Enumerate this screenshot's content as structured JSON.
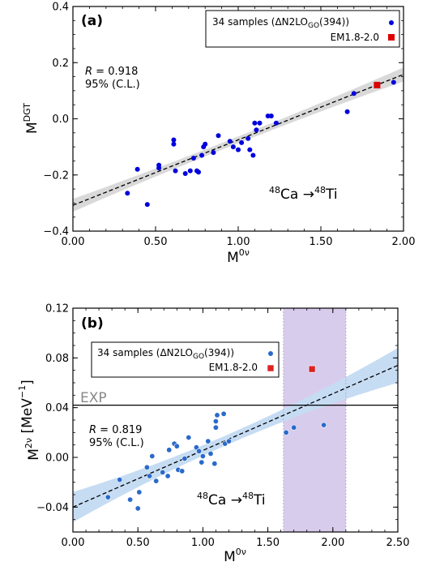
{
  "chart_data": [
    {
      "type": "scatter",
      "panel_label": "(a)",
      "xlabel": "M0ν",
      "ylabel": "MDGT",
      "xlim": [
        0.0,
        2.0
      ],
      "ylim": [
        -0.4,
        0.4
      ],
      "x_ticks": [
        "0.00",
        "0.50",
        "1.00",
        "1.50",
        "2.00"
      ],
      "y_ticks": [
        "0.4",
        "0.2",
        "0.0",
        "−0.2",
        "−0.4"
      ],
      "annotation": {
        "r_line": "R = 0.918",
        "cl_line": "95% (C.L.)"
      },
      "reaction": {
        "parent": "48Ca",
        "daughter": "48Ti"
      },
      "legend": {
        "position": "top-right",
        "samples_text": "34 samples (ΔN2LO",
        "samples_sub": "GO",
        "samples_tail": "(394))",
        "em_text": "EM1.8-2.0"
      },
      "fit": {
        "x0": 0.0,
        "y0": -0.308,
        "x1": 2.0,
        "y1": 0.158,
        "band_half_width_end": 0.025,
        "band_half_width_center": 0.012
      },
      "series": [
        {
          "name": "34 samples (ΔN2LOGO(394))",
          "color": "#0000dd",
          "points": [
            [
              0.33,
              -0.265
            ],
            [
              0.39,
              -0.18
            ],
            [
              0.45,
              -0.305
            ],
            [
              0.52,
              -0.165
            ],
            [
              0.52,
              -0.175
            ],
            [
              0.61,
              -0.075
            ],
            [
              0.61,
              -0.09
            ],
            [
              0.62,
              -0.185
            ],
            [
              0.68,
              -0.195
            ],
            [
              0.71,
              -0.185
            ],
            [
              0.73,
              -0.14
            ],
            [
              0.75,
              -0.185
            ],
            [
              0.76,
              -0.19
            ],
            [
              0.78,
              -0.13
            ],
            [
              0.79,
              -0.1
            ],
            [
              0.8,
              -0.09
            ],
            [
              0.85,
              -0.12
            ],
            [
              0.88,
              -0.06
            ],
            [
              0.95,
              -0.08
            ],
            [
              0.97,
              -0.1
            ],
            [
              1.0,
              -0.11
            ],
            [
              1.02,
              -0.085
            ],
            [
              1.06,
              -0.07
            ],
            [
              1.07,
              -0.11
            ],
            [
              1.09,
              -0.13
            ],
            [
              1.1,
              -0.015
            ],
            [
              1.11,
              -0.04
            ],
            [
              1.13,
              -0.015
            ],
            [
              1.18,
              0.01
            ],
            [
              1.2,
              0.01
            ],
            [
              1.23,
              -0.015
            ],
            [
              1.66,
              0.025
            ],
            [
              1.7,
              0.09
            ],
            [
              1.94,
              0.13
            ]
          ]
        },
        {
          "name": "EM1.8-2.0",
          "color": "#dd0000",
          "points": [
            [
              1.84,
              0.12
            ]
          ]
        }
      ]
    },
    {
      "type": "scatter",
      "panel_label": "(b)",
      "xlabel": "M0ν",
      "ylabel": "M2ν [MeV−1]",
      "xlim": [
        0.0,
        2.5
      ],
      "ylim": [
        -0.06,
        0.12
      ],
      "x_ticks": [
        "0.00",
        "0.50",
        "1.00",
        "1.50",
        "2.00",
        "2.50"
      ],
      "y_ticks": [
        "0.12",
        "0.08",
        "0.04",
        "0.00",
        "−0.04"
      ],
      "exp_value": 0.042,
      "exp_label": "EXP",
      "shaded_x_range": [
        1.62,
        2.1
      ],
      "annotation": {
        "r_line": "R = 0.819",
        "cl_line": "95% (C.L.)"
      },
      "reaction": {
        "parent": "48Ca",
        "daughter": "48Ti"
      },
      "legend": {
        "position": "upper-left",
        "samples_text": "34 samples (ΔN2LO",
        "samples_sub": "GO",
        "samples_tail": "(394))",
        "em_text": "EM1.8-2.0"
      },
      "fit": {
        "x0": 0.0,
        "y0": -0.04,
        "x1": 2.5,
        "y1": 0.074,
        "band_half_width_end": 0.014,
        "band_half_width_center": 0.004
      },
      "series": [
        {
          "name": "34 samples (ΔN2LOGO(394))",
          "color": "#2a6acb",
          "points": [
            [
              0.27,
              -0.032
            ],
            [
              0.36,
              -0.018
            ],
            [
              0.44,
              -0.034
            ],
            [
              0.5,
              -0.041
            ],
            [
              0.51,
              -0.028
            ],
            [
              0.57,
              -0.008
            ],
            [
              0.59,
              -0.015
            ],
            [
              0.61,
              0.001
            ],
            [
              0.64,
              -0.019
            ],
            [
              0.69,
              -0.012
            ],
            [
              0.73,
              -0.015
            ],
            [
              0.74,
              0.006
            ],
            [
              0.78,
              0.011
            ],
            [
              0.8,
              0.009
            ],
            [
              0.81,
              -0.01
            ],
            [
              0.84,
              -0.011
            ],
            [
              0.86,
              -0.001
            ],
            [
              0.89,
              0.016
            ],
            [
              0.95,
              0.008
            ],
            [
              0.97,
              0.005
            ],
            [
              0.99,
              -0.004
            ],
            [
              1.0,
              0.001
            ],
            [
              1.04,
              0.013
            ],
            [
              1.06,
              0.003
            ],
            [
              1.09,
              -0.005
            ],
            [
              1.1,
              0.024
            ],
            [
              1.1,
              0.029
            ],
            [
              1.11,
              0.034
            ],
            [
              1.16,
              0.035
            ],
            [
              1.17,
              0.011
            ],
            [
              1.2,
              0.013
            ],
            [
              1.64,
              0.02
            ],
            [
              1.7,
              0.024
            ],
            [
              1.93,
              0.026
            ]
          ]
        },
        {
          "name": "EM1.8-2.0",
          "color": "#dd2222",
          "points": [
            [
              1.84,
              0.071
            ]
          ]
        }
      ]
    }
  ]
}
